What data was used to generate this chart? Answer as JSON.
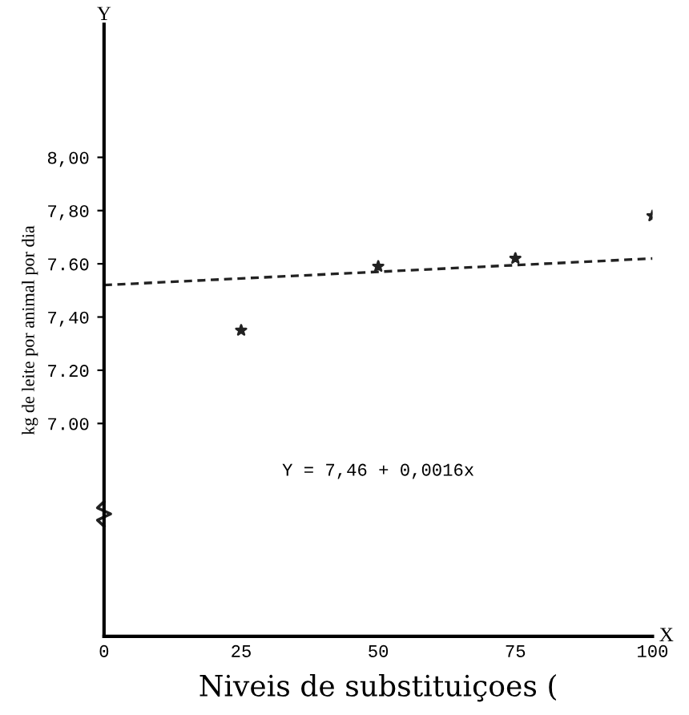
{
  "chart_data": {
    "type": "scatter",
    "xlabel": "Niveis de substituiçoes (",
    "ylabel": "kg de leite por animal por dia",
    "series": [
      {
        "color": "#222222",
        "x": [
          25,
          50,
          75,
          100
        ],
        "values": [
          7.35,
          7.59,
          7.62,
          7.78
        ],
        "marker": "star"
      },
      {
        "type": "line",
        "color": "#222222",
        "x": [
          0,
          100
        ],
        "values": [
          7.52,
          7.62
        ],
        "line_style": "dashed",
        "marker": "none"
      }
    ],
    "xlim": [
      0,
      100
    ],
    "xticks": [
      0,
      25,
      50,
      75,
      100
    ],
    "ylim": [
      6.2,
      8.5
    ],
    "yticks": [
      {
        "value": 7.0,
        "label": "7.00"
      },
      {
        "value": 7.2,
        "label": "7.20"
      },
      {
        "value": 7.4,
        "label": "7,40"
      },
      {
        "value": 7.6,
        "label": "7.60"
      },
      {
        "value": 7.8,
        "label": "7,80"
      },
      {
        "value": 8.0,
        "label": "8,00"
      }
    ],
    "annotations": [
      "Y = 7,46 + 0,0016x",
      "Y",
      "X"
    ],
    "grid": false,
    "legend": false
  }
}
